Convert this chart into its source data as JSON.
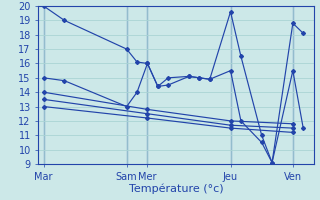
{
  "background_color": "#cce8e8",
  "grid_color": "#aad4d4",
  "line_color": "#2244aa",
  "xlabel": "Température (°c)",
  "ylim": [
    9,
    20
  ],
  "yticks": [
    9,
    10,
    11,
    12,
    13,
    14,
    15,
    16,
    17,
    18,
    19,
    20
  ],
  "x_tick_labels": [
    "Mar",
    "Sam",
    "Mer",
    "Jeu",
    "Ven"
  ],
  "x_tick_positions": [
    0,
    8,
    10,
    18,
    24
  ],
  "xlim": [
    -0.5,
    26
  ],
  "vlines": [
    0,
    8,
    10,
    18,
    24
  ],
  "series": [
    {
      "x": [
        0,
        2,
        8,
        9,
        10,
        11,
        12,
        14,
        15,
        16,
        18,
        19,
        21,
        22,
        24,
        25
      ],
      "y": [
        20,
        19,
        17,
        16.1,
        16,
        14.4,
        15,
        15.1,
        15,
        14.9,
        19.6,
        16.5,
        11,
        9.1,
        18.8,
        18.1
      ],
      "style": "-"
    },
    {
      "x": [
        0,
        2,
        8,
        9,
        10,
        11,
        12,
        14,
        15,
        16,
        18,
        19,
        21,
        22,
        24,
        25
      ],
      "y": [
        15,
        14.8,
        13,
        14,
        16,
        14.4,
        14.5,
        15.1,
        15,
        14.9,
        15.5,
        12,
        10.5,
        9.1,
        15.5,
        11.5
      ],
      "style": "-"
    },
    {
      "x": [
        0,
        10,
        18,
        24
      ],
      "y": [
        14,
        12.8,
        12,
        11.8
      ],
      "style": "-"
    },
    {
      "x": [
        0,
        10,
        18,
        24
      ],
      "y": [
        13.5,
        12.5,
        11.7,
        11.5
      ],
      "style": "-"
    },
    {
      "x": [
        0,
        10,
        18,
        24
      ],
      "y": [
        13,
        12.2,
        11.5,
        11.2
      ],
      "style": "-"
    }
  ]
}
